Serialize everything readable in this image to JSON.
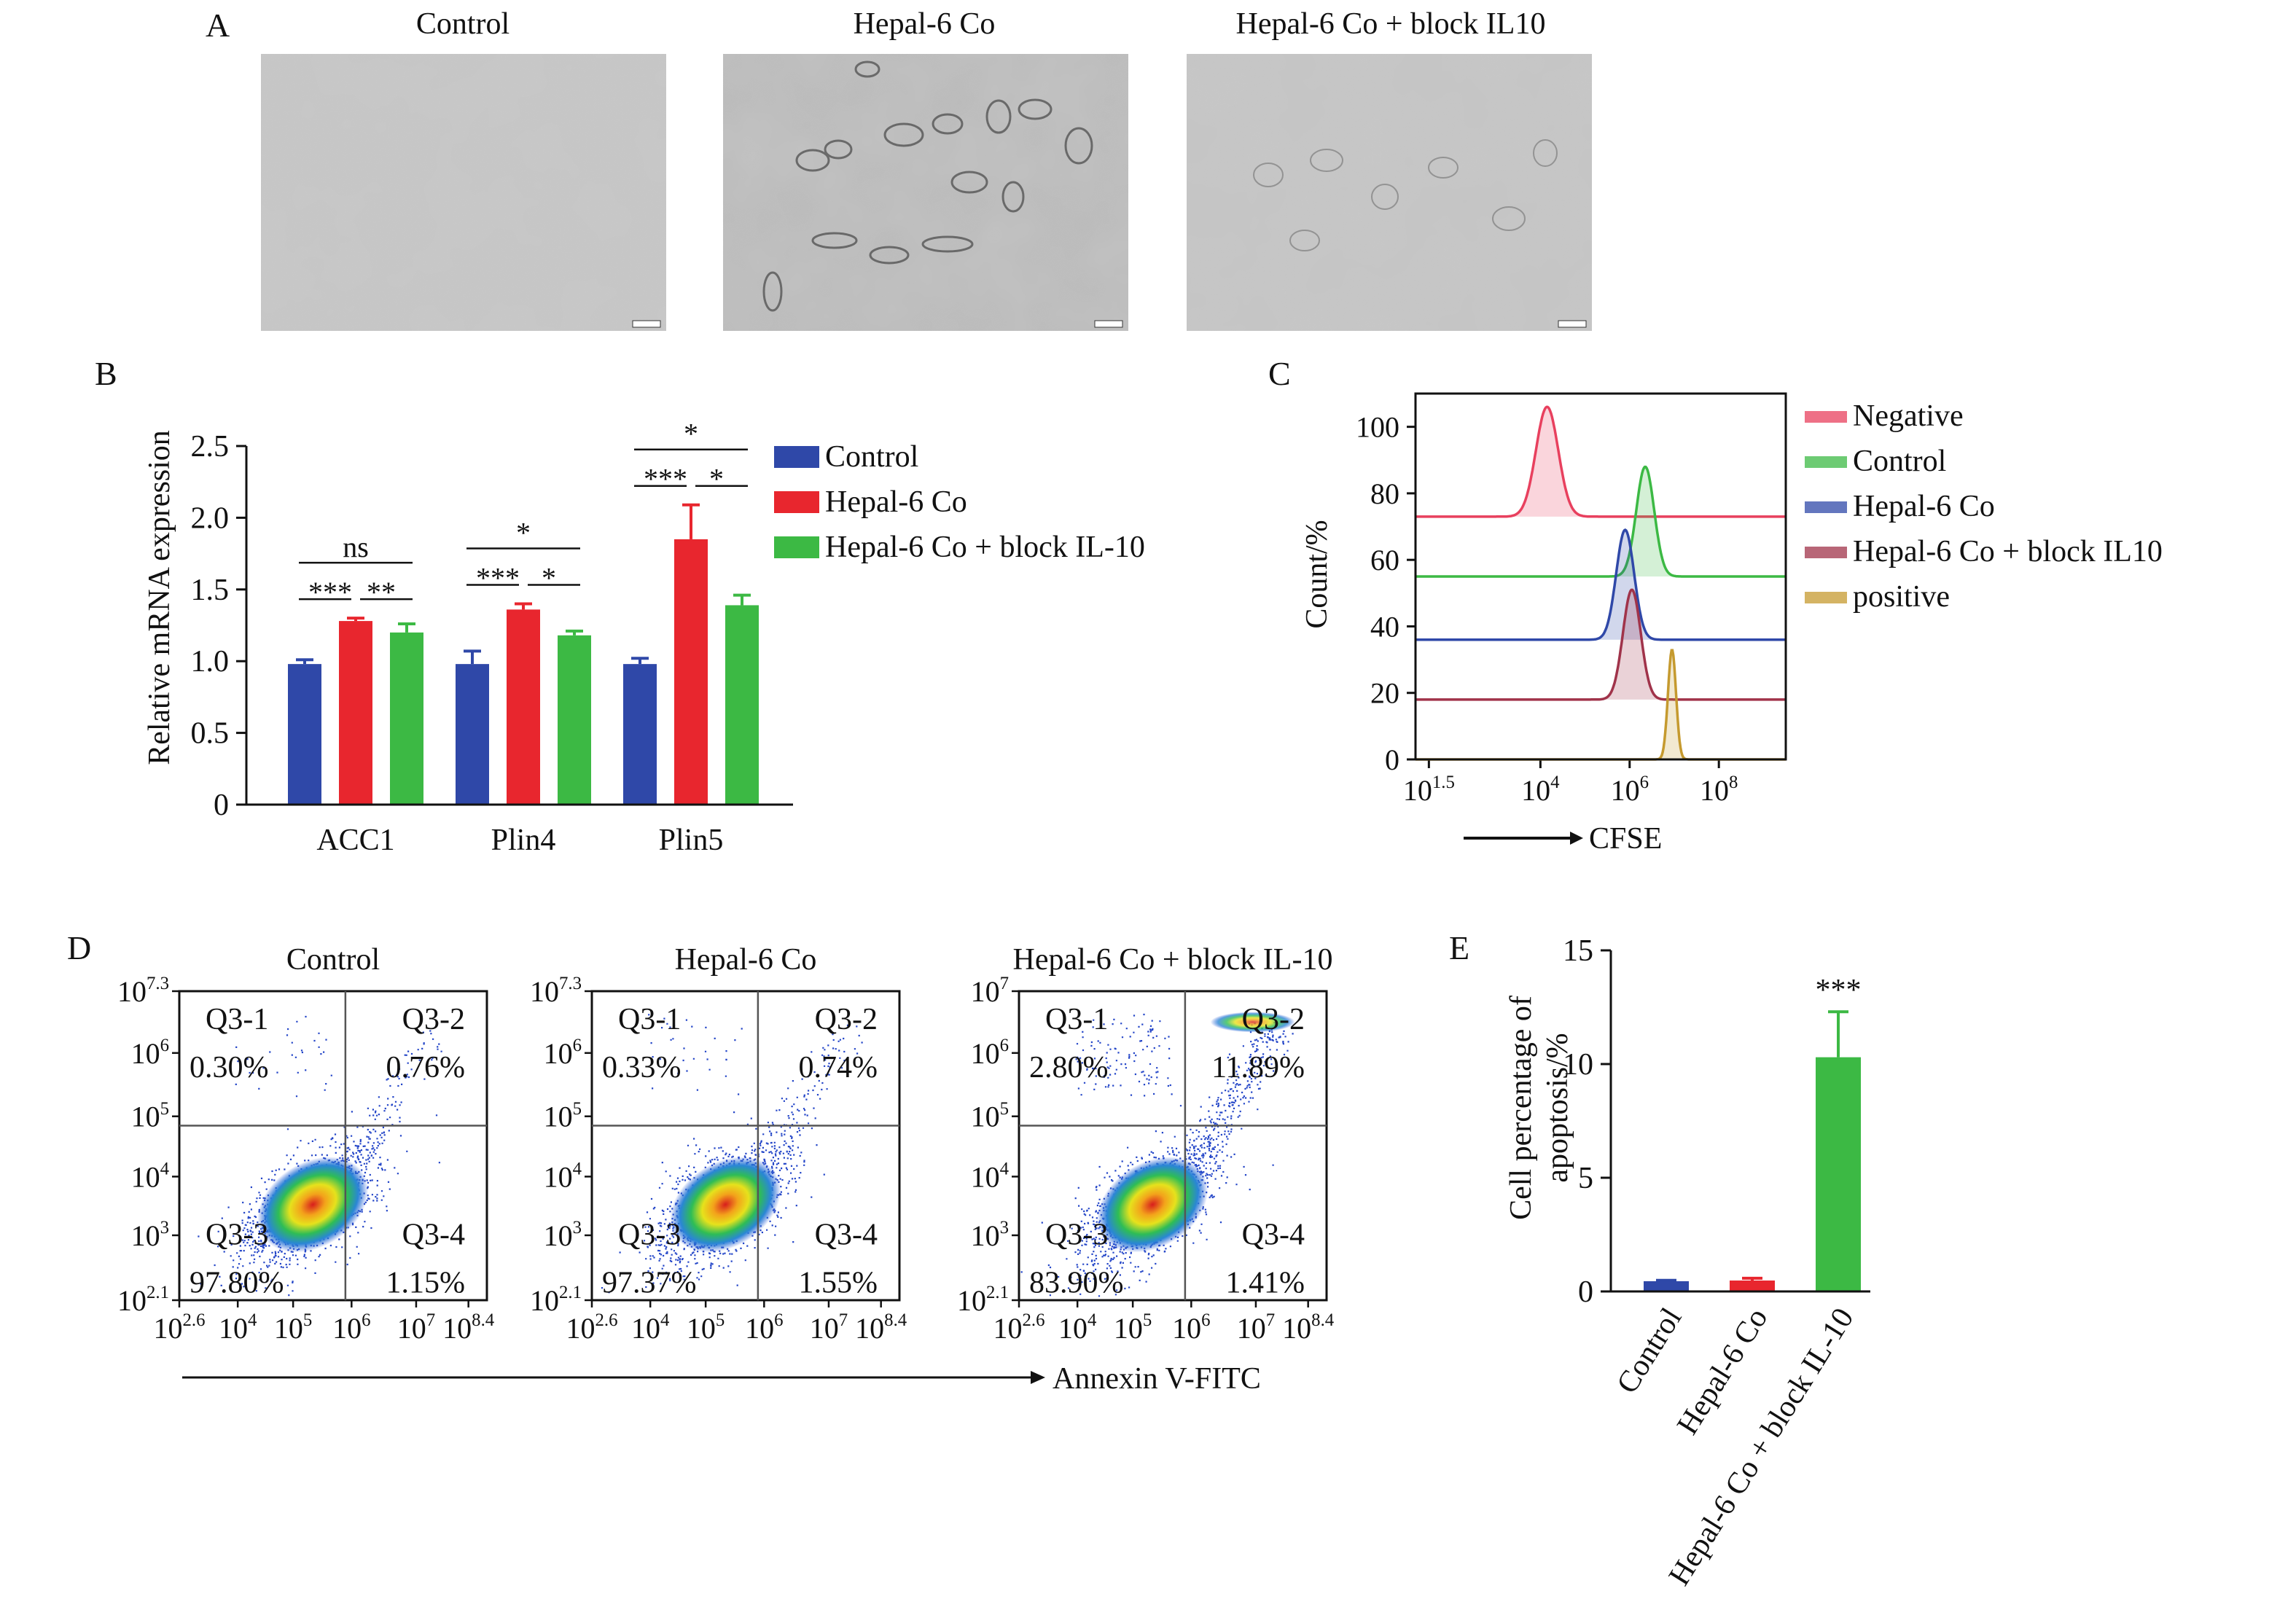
{
  "panels": {
    "A": {
      "letter": "A",
      "titles": [
        "Control",
        "Hepal-6 Co",
        "Hepal-6 Co + block IL10"
      ]
    },
    "D": {
      "letter": "D",
      "axis_label": "Annexin V-FITC",
      "plots": [
        {
          "title": "Control",
          "y_ticks": [
            "10^7.3",
            "10^6",
            "10^5",
            "10^4",
            "10^3",
            "10^2.1"
          ],
          "x_ticks": [
            "10^2.6",
            "10^4",
            "10^5",
            "10^6",
            "10^7",
            "10^8.4"
          ],
          "quadrants": [
            {
              "name": "Q3-1",
              "value": "0.30%"
            },
            {
              "name": "Q3-2",
              "value": "0.76%"
            },
            {
              "name": "Q3-3",
              "value": "97.80%"
            },
            {
              "name": "Q3-4",
              "value": "1.15%"
            }
          ]
        },
        {
          "title": "Hepal-6 Co",
          "y_ticks": [
            "10^7.3",
            "10^6",
            "10^5",
            "10^4",
            "10^3",
            "10^2.1"
          ],
          "x_ticks": [
            "10^2.6",
            "10^4",
            "10^5",
            "10^6",
            "10^7",
            "10^8.4"
          ],
          "quadrants": [
            {
              "name": "Q3-1",
              "value": "0.33%"
            },
            {
              "name": "Q3-2",
              "value": "0.74%"
            },
            {
              "name": "Q3-3",
              "value": "97.37%"
            },
            {
              "name": "Q3-4",
              "value": "1.55%"
            }
          ]
        },
        {
          "title": "Hepal-6 Co + block IL-10",
          "y_ticks": [
            "10^7",
            "10^6",
            "10^5",
            "10^4",
            "10^3",
            "10^2.1"
          ],
          "x_ticks": [
            "10^2.6",
            "10^4",
            "10^5",
            "10^6",
            "10^7",
            "10^8.4"
          ],
          "quadrants": [
            {
              "name": "Q3-1",
              "value": "2.80%"
            },
            {
              "name": "Q3-2",
              "value": "11.89%"
            },
            {
              "name": "Q3-3",
              "value": "83.90%"
            },
            {
              "name": "Q3-4",
              "value": "1.41%"
            }
          ]
        }
      ]
    }
  },
  "chart_data": [
    {
      "panel": "B",
      "type": "bar",
      "ylabel": "Relative mRNA expression",
      "categories": [
        "ACC1",
        "Plin4",
        "Plin5"
      ],
      "ylim": [
        0,
        2.5
      ],
      "yticks": [
        0,
        0.5,
        1.0,
        1.5,
        2.0,
        2.5
      ],
      "ytick_labels": [
        "0",
        "0.5",
        "1.0",
        "1.5",
        "2.0",
        "2.5"
      ],
      "series": [
        {
          "name": "Control",
          "color": "#2f48a8",
          "values": [
            0.98,
            0.98,
            0.98
          ],
          "errors": [
            0.03,
            0.09,
            0.04
          ]
        },
        {
          "name": "Hepal-6 Co",
          "color": "#e8262e",
          "values": [
            1.28,
            1.36,
            1.85
          ],
          "errors": [
            0.02,
            0.04,
            0.24
          ]
        },
        {
          "name": "Hepal-6 Co + block IL-10",
          "color": "#3cb944",
          "values": [
            1.2,
            1.18,
            1.39
          ],
          "errors": [
            0.06,
            0.03,
            0.07
          ]
        }
      ],
      "significance": [
        {
          "category": "ACC1",
          "top": "ns",
          "left": "***",
          "right": "**"
        },
        {
          "category": "Plin4",
          "top": "*",
          "left": "***",
          "right": "*"
        },
        {
          "category": "Plin5",
          "top": "*",
          "left": "***",
          "right": "*"
        }
      ],
      "legend": "right"
    },
    {
      "panel": "C",
      "type": "area",
      "xlabel": "CFSE",
      "ylabel": "Count/%",
      "ylim": [
        0,
        110
      ],
      "yticks": [
        0,
        20,
        40,
        60,
        80,
        100
      ],
      "ytick_labels": [
        "0",
        "20",
        "40",
        "60",
        "80",
        "100"
      ],
      "x_ticks": [
        "10^1.5",
        "10^4",
        "10^6",
        "10^8"
      ],
      "series": [
        {
          "name": "Negative",
          "color": "#e8405e",
          "baseline": 73,
          "peak_log": 4.15,
          "height": 33,
          "width": 0.25
        },
        {
          "name": "Control",
          "color": "#3cb944",
          "baseline": 55,
          "peak_log": 6.35,
          "height": 33,
          "width": 0.2
        },
        {
          "name": "Hepal-6 Co",
          "color": "#2f48a8",
          "baseline": 36,
          "peak_log": 5.9,
          "height": 33,
          "width": 0.2
        },
        {
          "name": "Hepal-6 Co + block IL10",
          "color": "#a0334a",
          "baseline": 18,
          "peak_log": 6.05,
          "height": 33,
          "width": 0.2
        },
        {
          "name": "positive",
          "color": "#c59a2f",
          "baseline": 0,
          "peak_log": 6.95,
          "height": 33,
          "width": 0.09
        }
      ],
      "legend": "right"
    },
    {
      "panel": "E",
      "type": "bar",
      "ylabel": "Cell percentage of apoptosis/%",
      "categories": [
        "Control",
        "Hepal-6 Co",
        "Hepal-6 Co + block IL-10"
      ],
      "ylim": [
        0,
        15
      ],
      "yticks": [
        0,
        5,
        10,
        15
      ],
      "ytick_labels": [
        "0",
        "5",
        "10",
        "15"
      ],
      "values": [
        0.45,
        0.48,
        10.3
      ],
      "errors": [
        0.04,
        0.1,
        2.0
      ],
      "colors": [
        "#2f48a8",
        "#e8262e",
        "#3cb944"
      ],
      "annotations": [
        {
          "category": "Hepal-6 Co + block IL-10",
          "text": "***"
        }
      ]
    }
  ]
}
